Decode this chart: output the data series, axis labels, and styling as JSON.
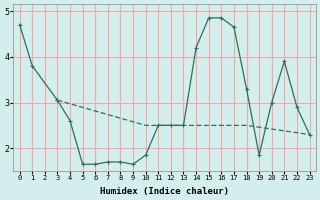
{
  "xlabel": "Humidex (Indice chaleur)",
  "bg_color": "#d4eeed",
  "grid_color": "#f0a8a8",
  "line_color": "#2a7060",
  "xlim": [
    -0.5,
    23.5
  ],
  "ylim": [
    1.5,
    5.15
  ],
  "yticks": [
    2,
    3,
    4,
    5
  ],
  "xticks": [
    0,
    1,
    2,
    3,
    4,
    5,
    6,
    7,
    8,
    9,
    10,
    11,
    12,
    13,
    14,
    15,
    16,
    17,
    18,
    19,
    20,
    21,
    22,
    23
  ],
  "line_descend": {
    "x": [
      0,
      1,
      3
    ],
    "y": [
      4.7,
      3.8,
      3.05
    ]
  },
  "line_main": {
    "x": [
      3,
      4,
      5,
      6,
      7,
      8,
      9,
      10,
      11,
      12,
      13,
      14,
      15,
      16,
      17,
      18,
      19,
      20,
      21,
      22,
      23
    ],
    "y": [
      3.05,
      2.6,
      1.65,
      1.65,
      1.7,
      1.7,
      1.65,
      1.85,
      2.5,
      2.5,
      2.5,
      4.2,
      4.85,
      4.85,
      4.65,
      3.3,
      1.85,
      3.0,
      3.9,
      2.9,
      2.3
    ]
  },
  "line_flat": {
    "x": [
      3,
      10,
      18,
      23
    ],
    "y": [
      3.05,
      2.5,
      2.5,
      2.3
    ]
  }
}
